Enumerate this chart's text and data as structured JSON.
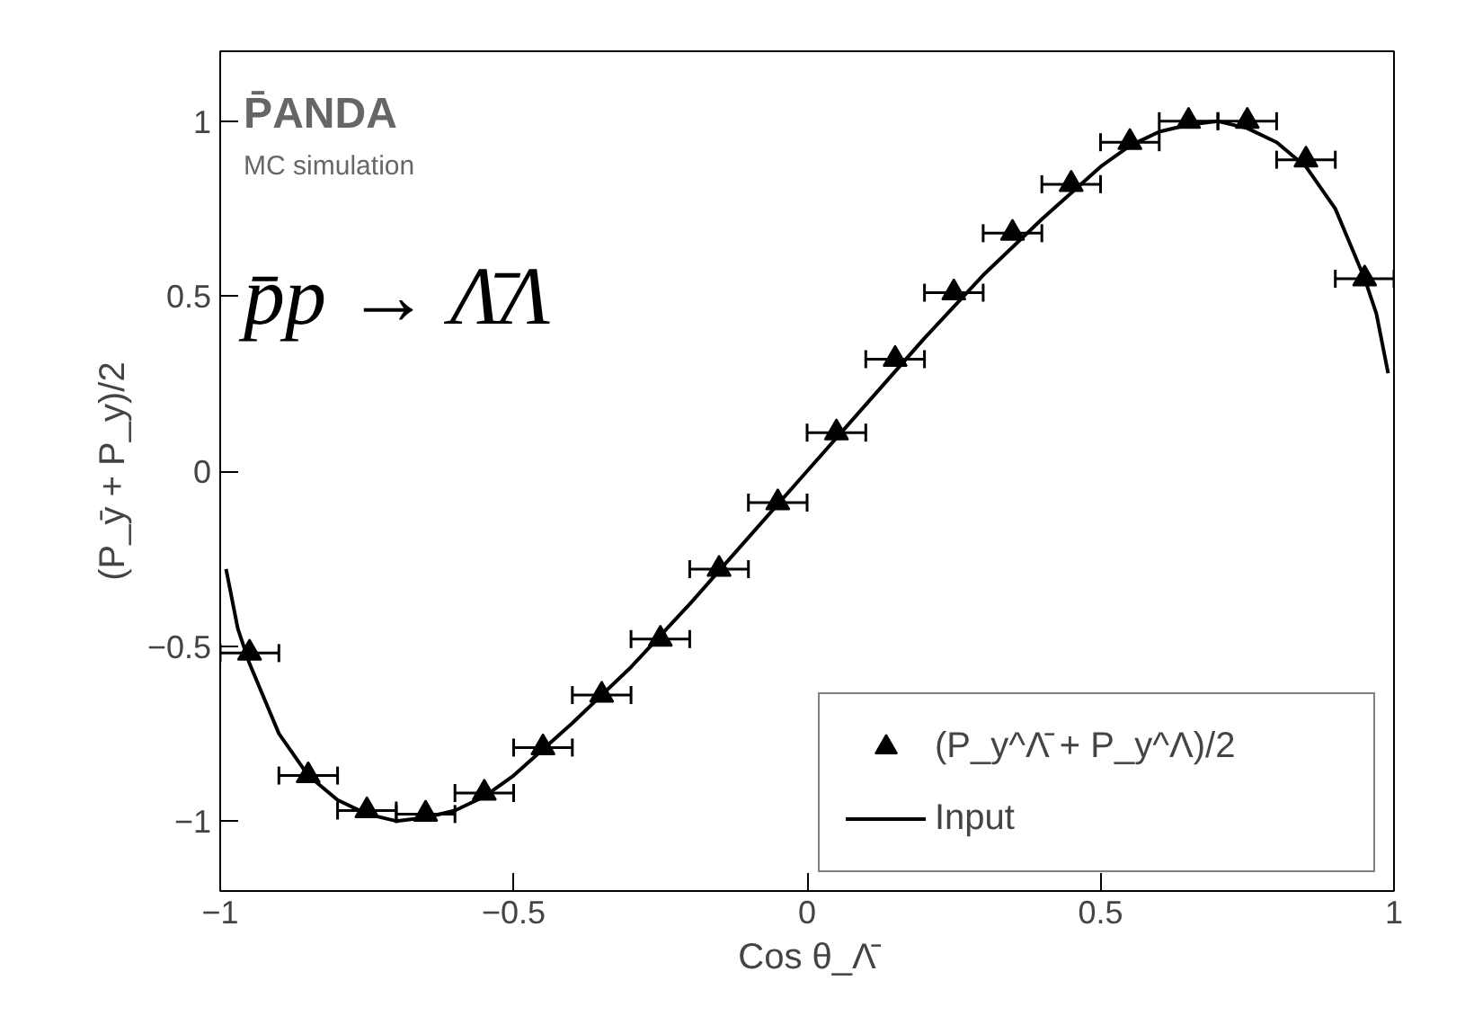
{
  "chart_data": {
    "type": "scatter",
    "xlabel": "Cos θ_Λ̄",
    "ylabel": "(P_ȳ + P_y)/2",
    "xlim": [
      -1,
      1
    ],
    "ylim": [
      -1.2,
      1.2
    ],
    "xticks": [
      {
        "value": -1,
        "label": "−1"
      },
      {
        "value": -0.5,
        "label": "−0.5"
      },
      0,
      0.5,
      1
    ],
    "yticks": [
      {
        "value": -1,
        "label": "−1"
      },
      {
        "value": -0.5,
        "label": "−0.5"
      },
      0,
      0.5,
      1
    ],
    "grid": false,
    "legend": "bottom right",
    "annotations": [
      "P̄ANDA",
      "MC simulation",
      "p̄p → Λ̄Λ"
    ],
    "series": [
      {
        "name": "(P_y^Λ̄ + P_y^Λ)/2",
        "marker": "triangle",
        "color": "#000000",
        "x": [
          -0.95,
          -0.85,
          -0.75,
          -0.65,
          -0.55,
          -0.45,
          -0.35,
          -0.25,
          -0.15,
          -0.05,
          0.05,
          0.15,
          0.25,
          0.35,
          0.45,
          0.55,
          0.65,
          0.75,
          0.85,
          0.95
        ],
        "values": [
          -0.52,
          -0.87,
          -0.97,
          -0.98,
          -0.92,
          -0.79,
          -0.64,
          -0.48,
          -0.28,
          -0.09,
          0.11,
          0.32,
          0.51,
          0.68,
          0.82,
          0.94,
          1.0,
          1.0,
          0.89,
          0.55
        ],
        "xerrors": [
          0.05,
          0.05,
          0.05,
          0.05,
          0.05,
          0.05,
          0.05,
          0.05,
          0.05,
          0.05,
          0.05,
          0.05,
          0.05,
          0.05,
          0.05,
          0.05,
          0.05,
          0.05,
          0.05,
          0.05
        ]
      },
      {
        "name": "Input",
        "type": "line",
        "color": "#000000",
        "line_style": "solid",
        "x": [
          -0.99,
          -0.97,
          -0.95,
          -0.9,
          -0.85,
          -0.8,
          -0.75,
          -0.7,
          -0.65,
          -0.6,
          -0.55,
          -0.5,
          -0.4,
          -0.3,
          -0.2,
          -0.1,
          0,
          0.1,
          0.2,
          0.3,
          0.4,
          0.5,
          0.55,
          0.6,
          0.65,
          0.7,
          0.75,
          0.8,
          0.85,
          0.9,
          0.95,
          0.97,
          0.99
        ],
        "values": [
          -0.28,
          -0.45,
          -0.55,
          -0.75,
          -0.87,
          -0.94,
          -0.98,
          -1.0,
          -0.99,
          -0.97,
          -0.93,
          -0.87,
          -0.72,
          -0.56,
          -0.38,
          -0.19,
          0,
          0.19,
          0.38,
          0.56,
          0.72,
          0.87,
          0.93,
          0.97,
          0.99,
          1.0,
          0.98,
          0.94,
          0.87,
          0.75,
          0.55,
          0.45,
          0.28
        ]
      }
    ]
  }
}
